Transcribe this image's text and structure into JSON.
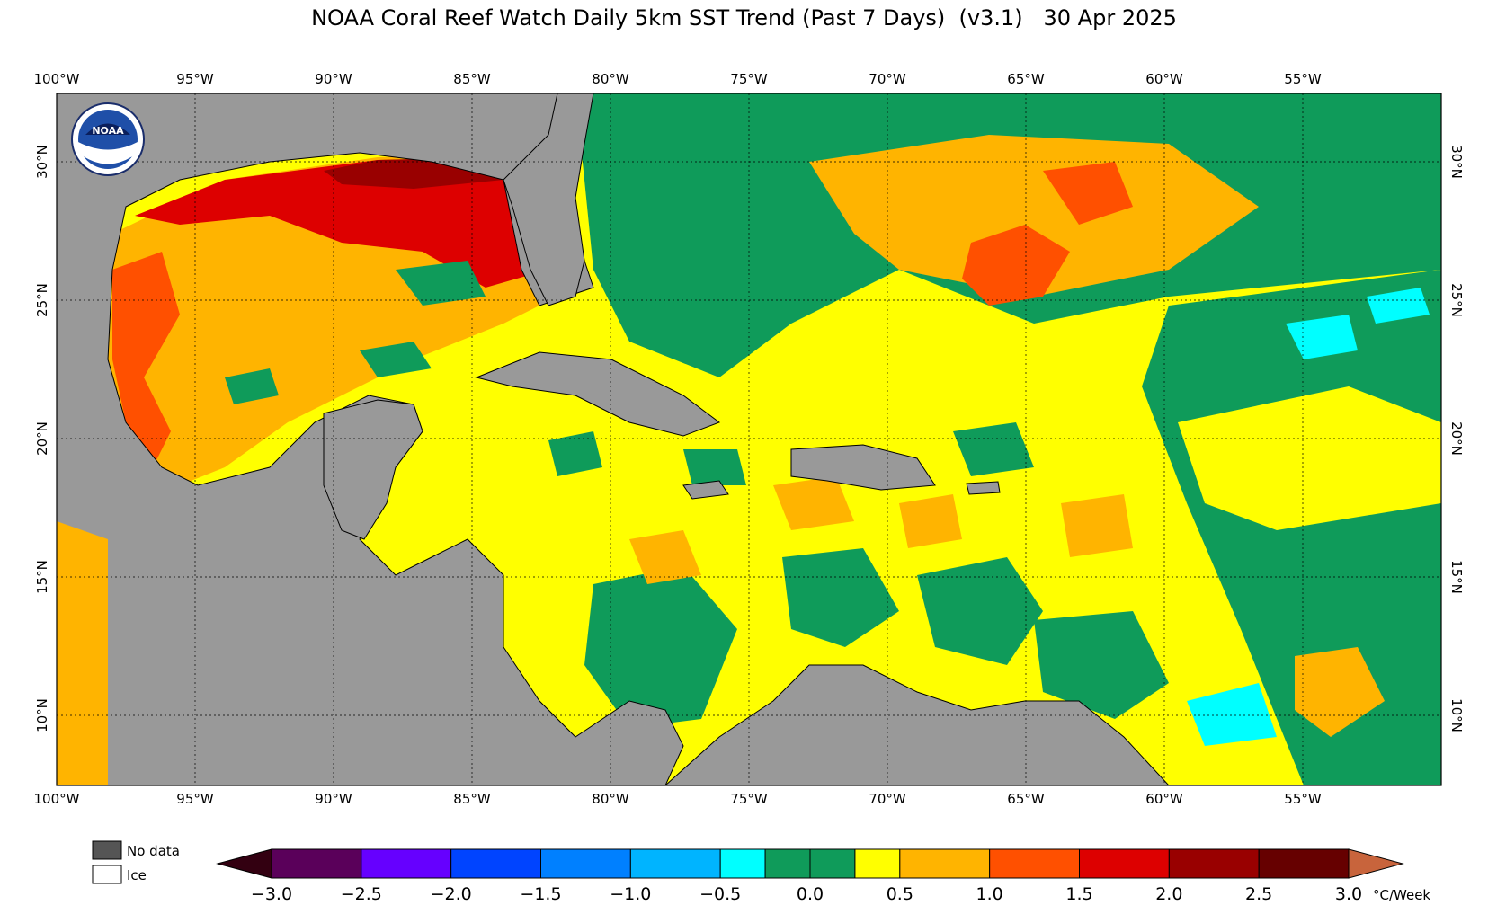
{
  "title": "NOAA Coral Reef Watch Daily 5km SST Trend (Past 7 Days)  (v3.1)   30 Apr 2025",
  "logo": {
    "name": "noaa-logo",
    "text": "NOAA"
  },
  "lon_ticks": [
    "100°W",
    "95°W",
    "90°W",
    "85°W",
    "80°W",
    "75°W",
    "70°W",
    "65°W",
    "60°W",
    "55°W"
  ],
  "lat_ticks": [
    "30°N",
    "25°N",
    "20°N",
    "15°N",
    "10°N"
  ],
  "legend_keys": {
    "no_data": "No data",
    "ice": "Ice"
  },
  "colorbar": {
    "unit": "°C/Week",
    "labels": [
      "−3.0",
      "−2.5",
      "−2.0",
      "−1.5",
      "−1.0",
      "−0.5",
      "0.0",
      "0.5",
      "1.0",
      "1.5",
      "2.0",
      "2.5",
      "3.0"
    ],
    "colors": [
      "#5a005a",
      "#6600ff",
      "#0044ff",
      "#0080ff",
      "#00b4ff",
      "#00ffff",
      "#0f9b5a",
      "#0f9b5a",
      "#ffff00",
      "#ffb400",
      "#ff5000",
      "#dd0000",
      "#990000",
      "#660000"
    ],
    "low_arrow_color": "#330011",
    "high_arrow_color": "#c8643c"
  },
  "colors": {
    "land": "#999999",
    "no_data": "#555555"
  }
}
